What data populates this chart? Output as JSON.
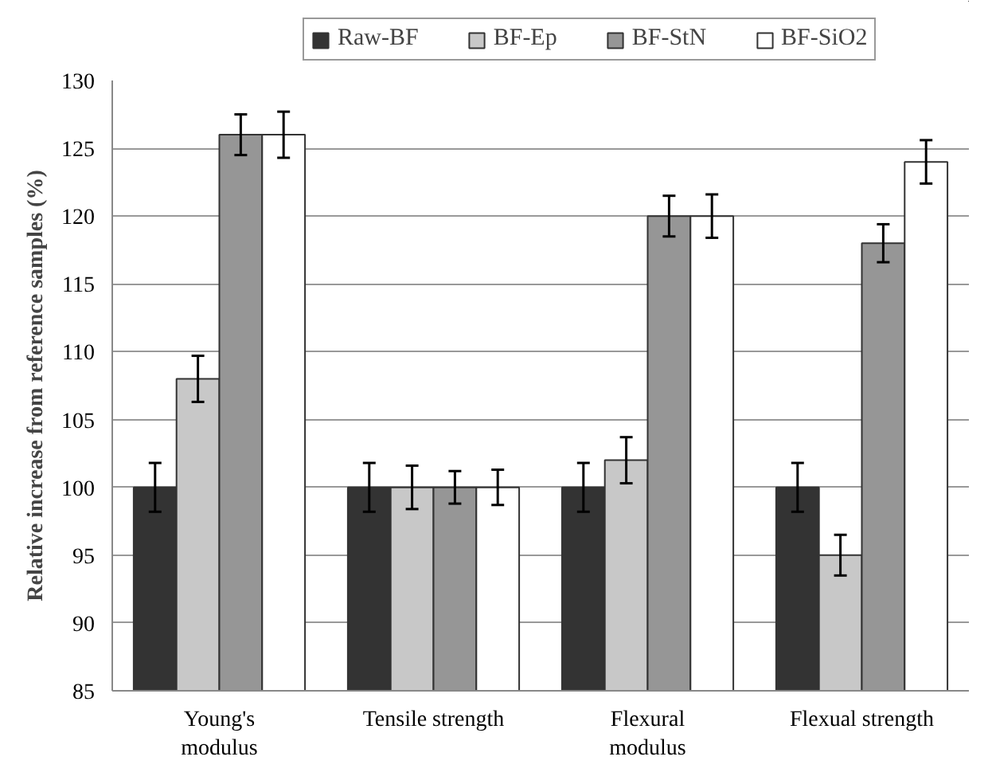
{
  "chart_data": {
    "type": "bar",
    "ylabel": "Relative increase from reference samples (%)",
    "categories": [
      "Young's\nmodulus",
      "Tensile strength",
      "Flexural\nmodulus",
      "Flexual strength"
    ],
    "series": [
      {
        "name": "Raw-BF",
        "color": "#333333",
        "values": [
          100,
          100,
          100,
          100
        ],
        "errors": [
          1.8,
          1.8,
          1.8,
          1.8
        ]
      },
      {
        "name": "BF-Ep",
        "color": "#c8c8c8",
        "values": [
          108,
          100,
          102,
          95
        ],
        "errors": [
          1.7,
          1.6,
          1.7,
          1.5
        ]
      },
      {
        "name": "BF-StN",
        "color": "#969696",
        "values": [
          126,
          100,
          120,
          118
        ],
        "errors": [
          1.5,
          1.2,
          1.5,
          1.4
        ]
      },
      {
        "name": "BF-SiO2",
        "color": "#ffffff",
        "values": [
          126,
          100,
          120,
          124
        ],
        "errors": [
          1.7,
          1.3,
          1.6,
          1.6
        ]
      }
    ],
    "ylim": [
      85,
      130
    ],
    "yticks": [
      85,
      90,
      95,
      100,
      105,
      110,
      115,
      120,
      125,
      130
    ],
    "grid": "y",
    "legend": "top"
  }
}
